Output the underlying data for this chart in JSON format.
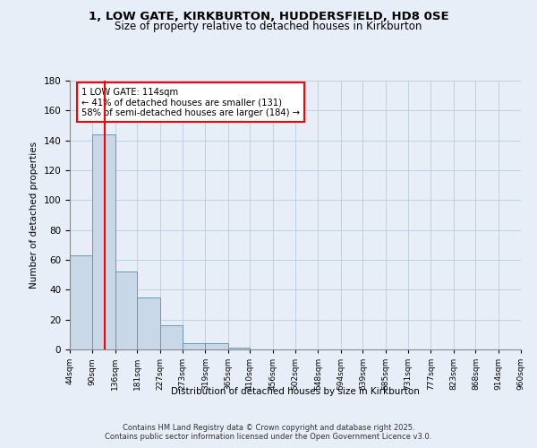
{
  "title_line1": "1, LOW GATE, KIRKBURTON, HUDDERSFIELD, HD8 0SE",
  "title_line2": "Size of property relative to detached houses in Kirkburton",
  "xlabel": "Distribution of detached houses by size in Kirkburton",
  "ylabel": "Number of detached properties",
  "bin_labels": [
    "44sqm",
    "90sqm",
    "136sqm",
    "181sqm",
    "227sqm",
    "273sqm",
    "319sqm",
    "365sqm",
    "410sqm",
    "456sqm",
    "502sqm",
    "548sqm",
    "594sqm",
    "639sqm",
    "685sqm",
    "731sqm",
    "777sqm",
    "823sqm",
    "868sqm",
    "914sqm",
    "960sqm"
  ],
  "bin_edges": [
    44,
    90,
    136,
    181,
    227,
    273,
    319,
    365,
    410,
    456,
    502,
    548,
    594,
    639,
    685,
    731,
    777,
    823,
    868,
    914,
    960
  ],
  "bar_heights": [
    63,
    144,
    52,
    35,
    16,
    4,
    4,
    1,
    0,
    0,
    0,
    0,
    0,
    0,
    0,
    0,
    0,
    0,
    0,
    0
  ],
  "bar_color": "#c8d8e8",
  "bar_edge_color": "#6699bb",
  "red_line_x": 114,
  "annotation_text": "1 LOW GATE: 114sqm\n← 41% of detached houses are smaller (131)\n58% of semi-detached houses are larger (184) →",
  "background_color": "#e8eef8",
  "plot_bg_color": "#e8eef8",
  "footer_text": "Contains HM Land Registry data © Crown copyright and database right 2025.\nContains public sector information licensed under the Open Government Licence v3.0.",
  "ylim": [
    0,
    180
  ],
  "yticks": [
    0,
    20,
    40,
    60,
    80,
    100,
    120,
    140,
    160,
    180
  ]
}
